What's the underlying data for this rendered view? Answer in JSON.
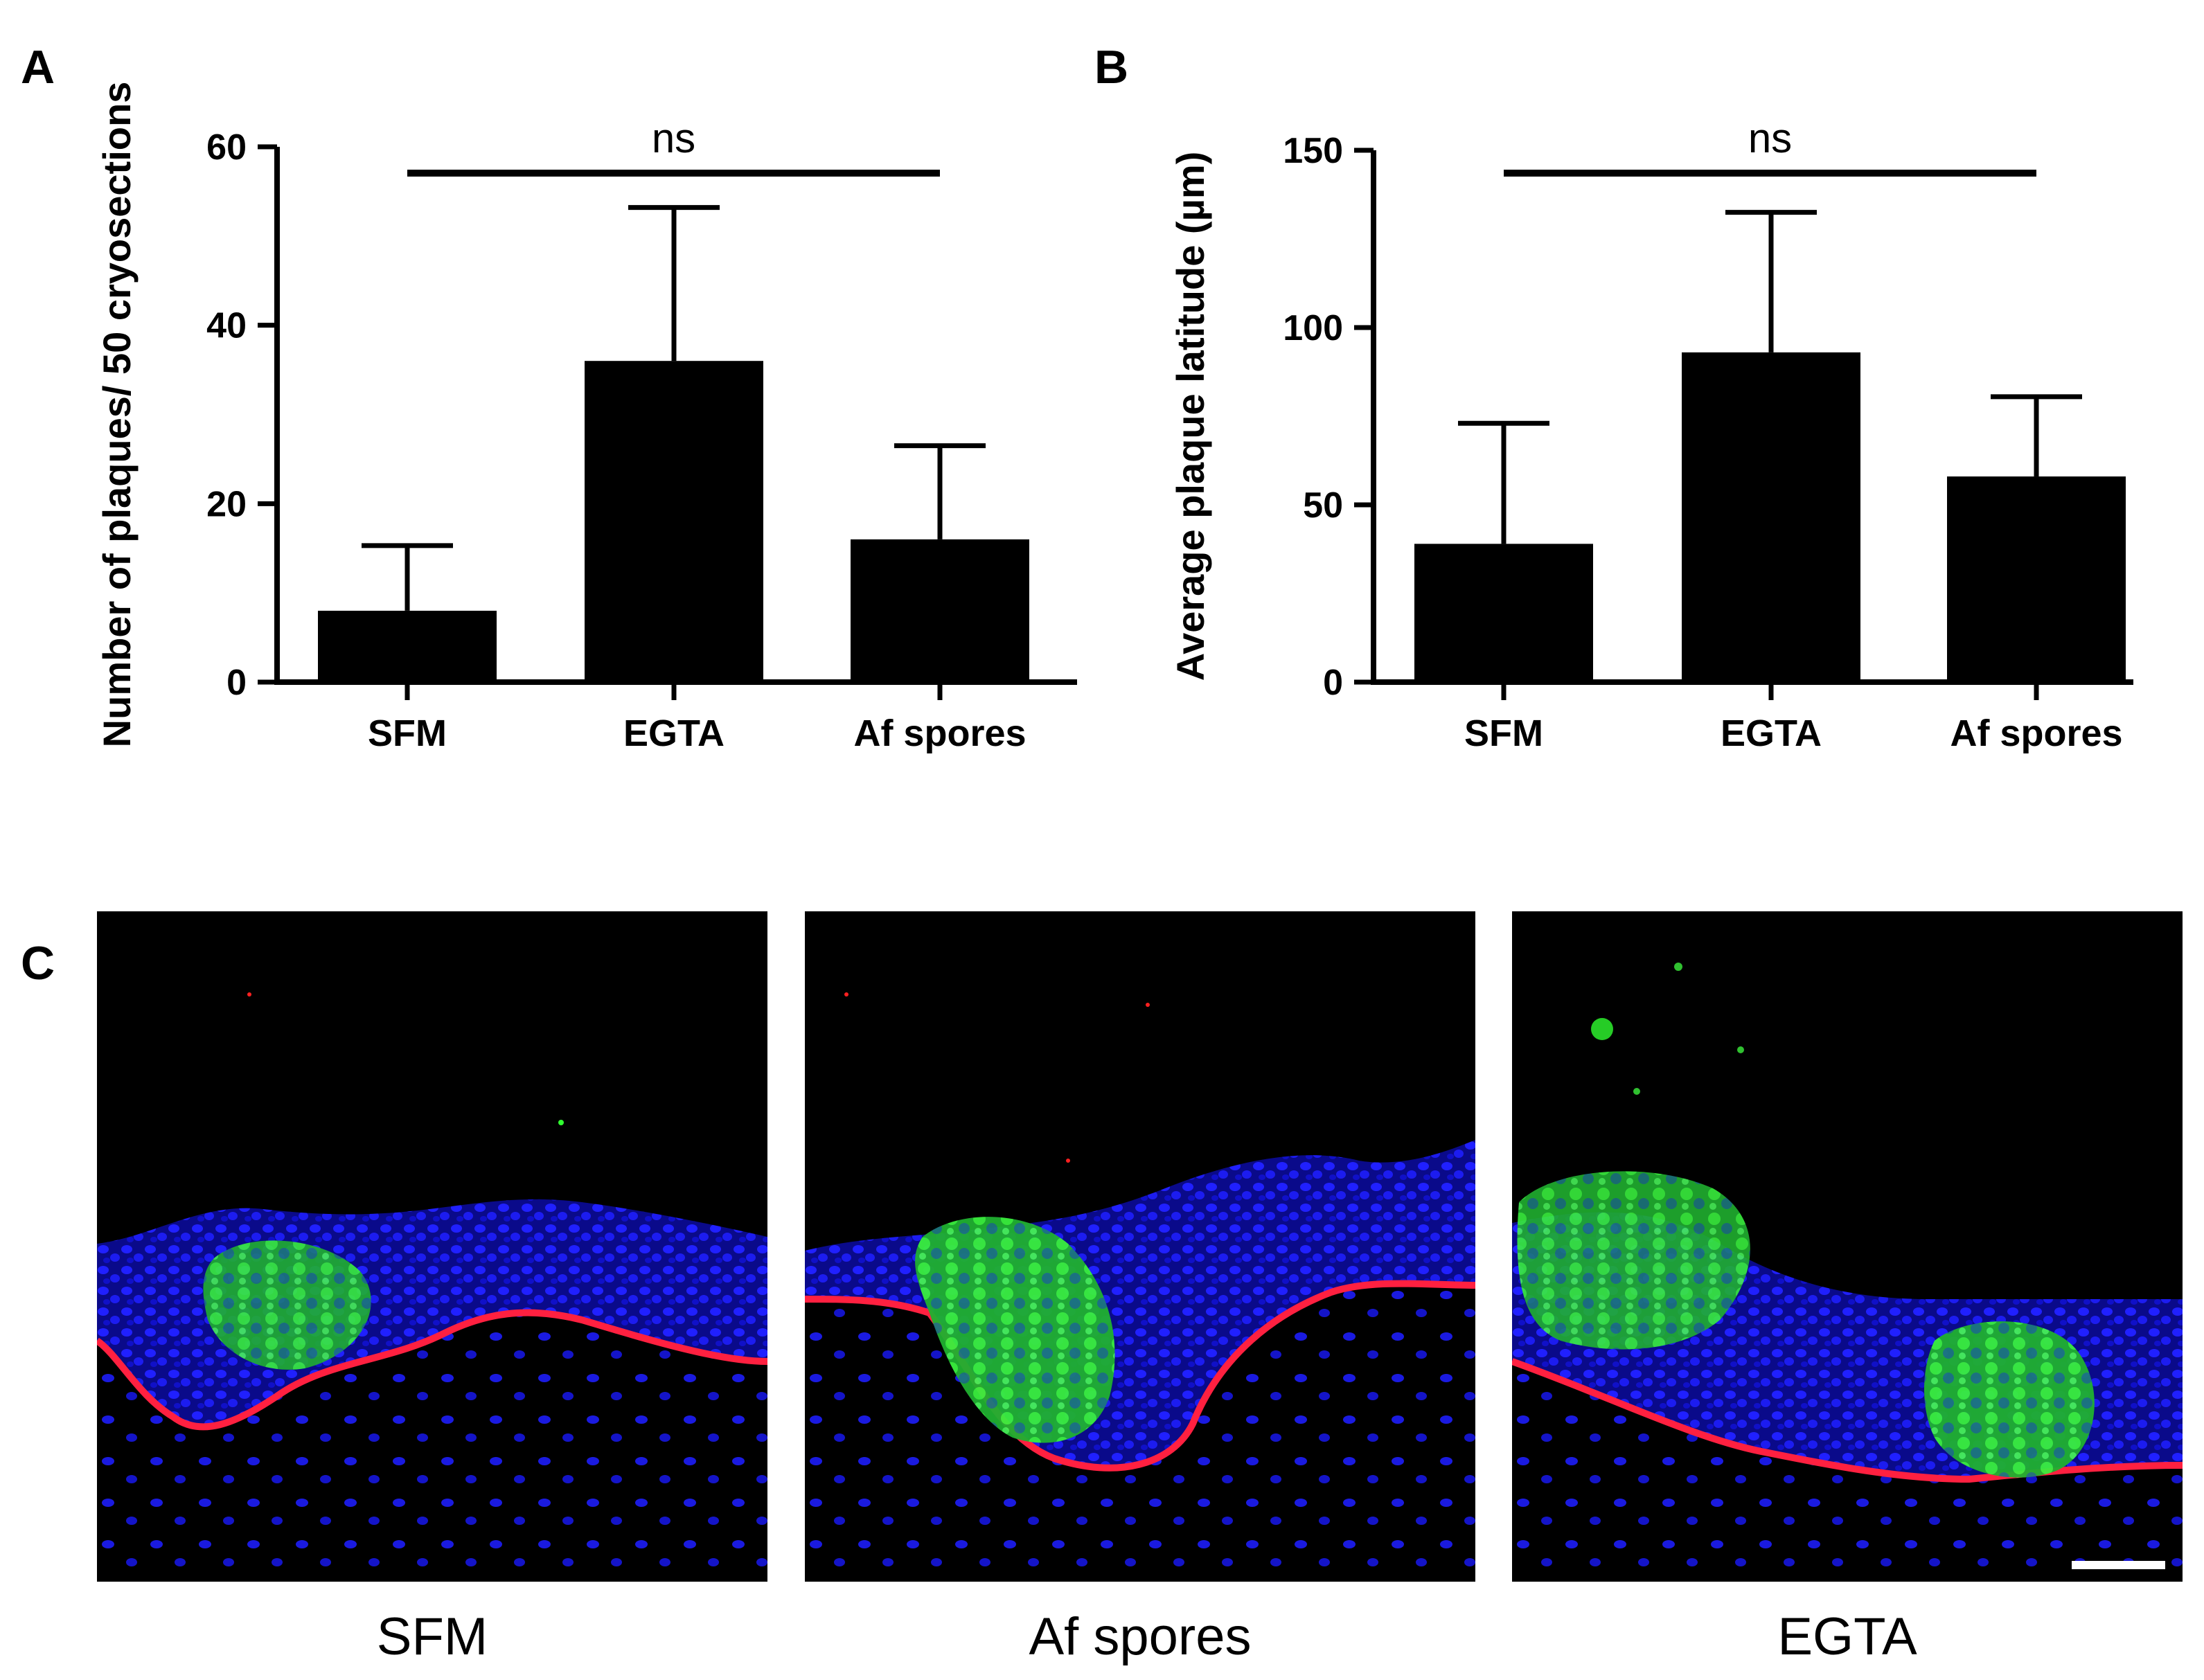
{
  "panels": {
    "a": "A",
    "b": "B",
    "c": "C"
  },
  "chart_data": [
    {
      "type": "bar",
      "panel": "A",
      "categories": [
        "SFM",
        "EGTA",
        "Af spores"
      ],
      "values": [
        8,
        36,
        16
      ],
      "error_upper": [
        15.3,
        53.2,
        26.5
      ],
      "ylabel": "Number of plaques/ 50 cryosections",
      "ylim": [
        0,
        60
      ],
      "yticks": [
        0,
        20,
        40,
        60
      ],
      "significance": {
        "label": "ns",
        "from": "SFM",
        "to": "Af spores"
      },
      "grid": false,
      "bar_color": "#000000"
    },
    {
      "type": "bar",
      "panel": "B",
      "categories": [
        "SFM",
        "EGTA",
        "Af spores"
      ],
      "values": [
        39,
        93,
        58
      ],
      "error_upper": [
        73,
        132.5,
        80.5
      ],
      "ylabel": "Average plaque latitude (µm)",
      "ylim": [
        0,
        150
      ],
      "yticks": [
        0,
        50,
        100,
        150
      ],
      "significance": {
        "label": "ns",
        "from": "SFM",
        "to": "Af spores"
      },
      "grid": false,
      "bar_color": "#000000"
    }
  ],
  "micrographs": [
    {
      "label": "SFM",
      "colors": {
        "nuclei": "#1a1aff",
        "membrane": "#ff2040",
        "plaque": "#28e028"
      }
    },
    {
      "label": "Af spores",
      "colors": {
        "nuclei": "#1a1aff",
        "membrane": "#ff2040",
        "plaque": "#28e028"
      }
    },
    {
      "label": "EGTA",
      "colors": {
        "nuclei": "#1a1aff",
        "membrane": "#ff2040",
        "plaque": "#28e028"
      }
    }
  ]
}
